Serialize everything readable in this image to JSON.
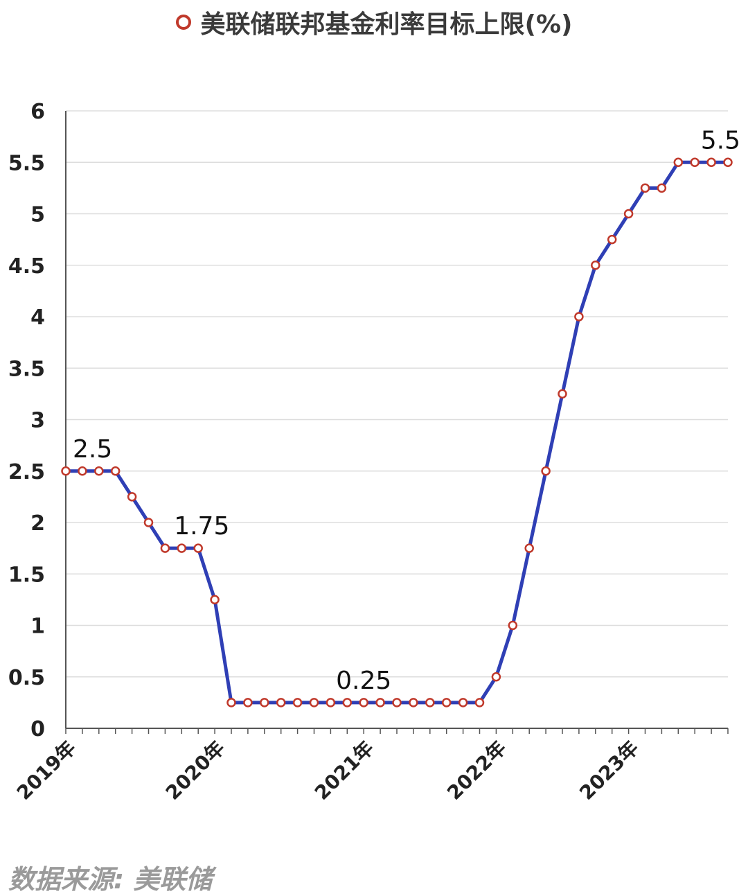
{
  "legend": {
    "label": "美联储联邦基金利率目标上限(%)",
    "marker_color": "#c0392b"
  },
  "source_note": "数据来源: 美联储",
  "colors": {
    "line": "#2f3fb5",
    "marker_stroke": "#c0392b",
    "marker_fill": "#ffffff",
    "grid": "#dddddd",
    "axis": "#555555"
  },
  "chart_data": {
    "type": "line",
    "title": "",
    "xlabel": "",
    "ylabel": "",
    "ylim": [
      0,
      6
    ],
    "yticks": [
      "0",
      "0.5",
      "1",
      "1.5",
      "2",
      "2.5",
      "3",
      "3.5",
      "4",
      "4.5",
      "5",
      "5.5",
      "6"
    ],
    "x_tick_labels": [
      {
        "label": "2019年",
        "index": 0
      },
      {
        "label": "2020年",
        "index": 9
      },
      {
        "label": "2021年",
        "index": 18
      },
      {
        "label": "2022年",
        "index": 26
      },
      {
        "label": "2023年",
        "index": 34
      }
    ],
    "grid": true,
    "legend_position": "top-center",
    "series": [
      {
        "name": "美联储联邦基金利率目标上限(%)",
        "values": [
          2.5,
          2.5,
          2.5,
          2.5,
          2.25,
          2.0,
          1.75,
          1.75,
          1.75,
          1.25,
          0.25,
          0.25,
          0.25,
          0.25,
          0.25,
          0.25,
          0.25,
          0.25,
          0.25,
          0.25,
          0.25,
          0.25,
          0.25,
          0.25,
          0.25,
          0.25,
          0.5,
          1.0,
          1.75,
          2.5,
          3.25,
          4.0,
          4.5,
          4.75,
          5.0,
          5.25,
          5.25,
          5.5,
          5.5,
          5.5,
          5.5
        ]
      }
    ],
    "annotations": [
      {
        "text": "2.5",
        "index": 0
      },
      {
        "text": "1.75",
        "index": 8
      },
      {
        "text": "0.25",
        "index": 18
      },
      {
        "text": "5.5",
        "index": 40
      }
    ]
  }
}
